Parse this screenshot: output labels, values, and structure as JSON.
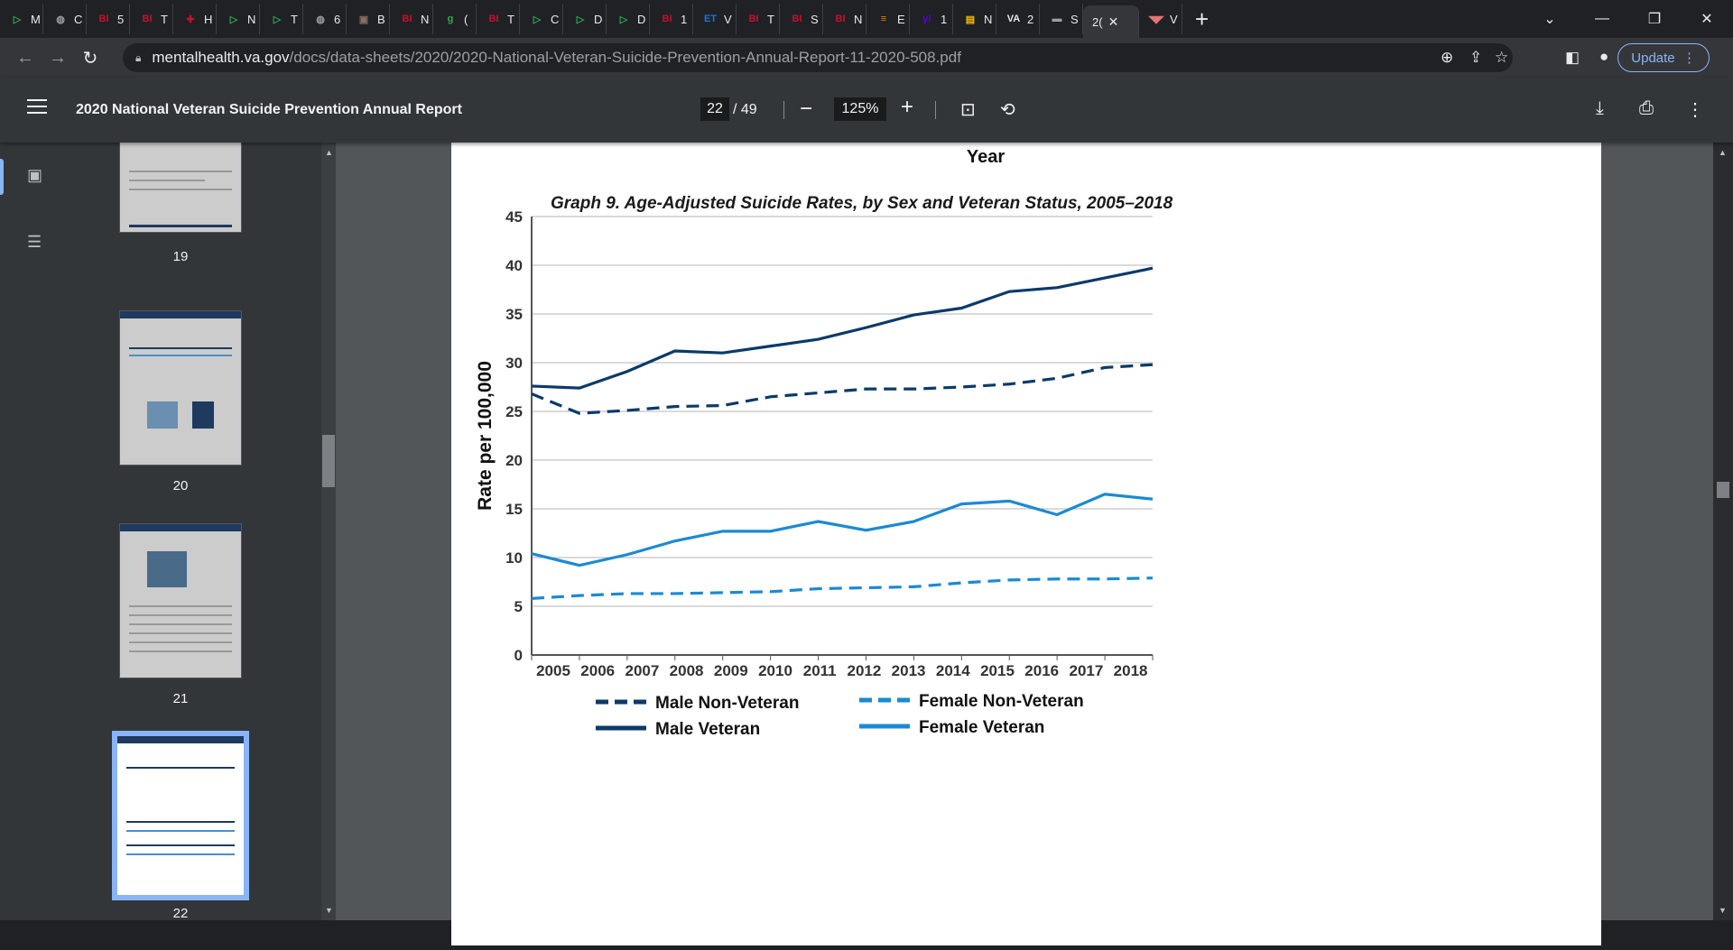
{
  "browser": {
    "tabs": [
      {
        "icon": "▷",
        "label": "M",
        "color": "#34a853"
      },
      {
        "icon": "◍",
        "label": "C",
        "color": "#9aa0a6"
      },
      {
        "icon": "BI",
        "label": "5",
        "color": "#c8102e"
      },
      {
        "icon": "BI",
        "label": "T",
        "color": "#c8102e"
      },
      {
        "icon": "✚",
        "label": "H",
        "color": "#c8102e"
      },
      {
        "icon": "▷",
        "label": "N",
        "color": "#34a853"
      },
      {
        "icon": "▷",
        "label": "T",
        "color": "#34a853"
      },
      {
        "icon": "◍",
        "label": "6",
        "color": "#9aa0a6"
      },
      {
        "icon": "▣",
        "label": "B",
        "color": "#8d6e63"
      },
      {
        "icon": "BI",
        "label": "N",
        "color": "#c8102e"
      },
      {
        "icon": "g",
        "label": "(",
        "color": "#34a853"
      },
      {
        "icon": "BI",
        "label": "T",
        "color": "#c8102e"
      },
      {
        "icon": "▷",
        "label": "C",
        "color": "#34a853"
      },
      {
        "icon": "▷",
        "label": "D",
        "color": "#34a853"
      },
      {
        "icon": "▷",
        "label": "D",
        "color": "#34a853"
      },
      {
        "icon": "BI",
        "label": "1",
        "color": "#c8102e"
      },
      {
        "icon": "ET",
        "label": "V",
        "color": "#1a73e8"
      },
      {
        "icon": "BI",
        "label": "T",
        "color": "#c8102e"
      },
      {
        "icon": "BI",
        "label": "S",
        "color": "#c8102e"
      },
      {
        "icon": "BI",
        "label": "N",
        "color": "#c8102e"
      },
      {
        "icon": "≡",
        "label": "E",
        "color": "#f57c00"
      },
      {
        "icon": "y!",
        "label": "1",
        "color": "#6001d2"
      },
      {
        "icon": "▤",
        "label": "N",
        "color": "#fbbc04"
      },
      {
        "icon": "VA",
        "label": "2",
        "color": "#e8eaed"
      },
      {
        "icon": "▬",
        "label": "S",
        "color": "#9aa0a6"
      },
      {
        "icon": "",
        "label": "2(",
        "color": "#9aa0a6"
      },
      {
        "icon": "◥◤",
        "label": "V",
        "color": "#e57373"
      }
    ],
    "active_close": "✕",
    "new_tab": "+",
    "url_host": "mentalhealth.va.gov",
    "url_path": "/docs/data-sheets/2020/2020-National-Veteran-Suicide-Prevention-Annual-Report-11-2020-508.pdf",
    "update_label": "Update"
  },
  "viewer": {
    "title": "2020 National Veteran Suicide Prevention Annual Report",
    "current_page": "22",
    "total_pages": "/ 49",
    "zoom": "125%"
  },
  "thumbnails": [
    {
      "page": "19"
    },
    {
      "page": "20"
    },
    {
      "page": "21"
    },
    {
      "page": "22"
    }
  ],
  "document": {
    "prev_axis_label": "Year",
    "graph_title": "Graph 9. Age-Adjusted Suicide Rates, by Sex and Veteran Status, 2005–2018"
  },
  "chart_data": {
    "type": "line",
    "title": "Graph 9. Age-Adjusted Suicide Rates, by Sex and Veteran Status, 2005–2018",
    "xlabel": "",
    "ylabel": "Rate per 100,000",
    "ylim": [
      0,
      45
    ],
    "yticks": [
      0,
      5,
      10,
      15,
      20,
      25,
      30,
      35,
      40,
      45
    ],
    "grid": true,
    "legend_position": "bottom",
    "categories": [
      "2005",
      "2006",
      "2007",
      "2008",
      "2009",
      "2010",
      "2011",
      "2012",
      "2013",
      "2014",
      "2015",
      "2016",
      "2017",
      "2018"
    ],
    "series": [
      {
        "name": "Male Non-Veteran",
        "color": "#0b3a6b",
        "dash": true,
        "values": [
          26.8,
          24.8,
          25.1,
          25.5,
          25.6,
          26.5,
          26.9,
          27.3,
          27.3,
          27.5,
          27.8,
          28.4,
          29.5,
          29.8
        ]
      },
      {
        "name": "Female Non-Veteran",
        "color": "#1a8ad4",
        "dash": true,
        "values": [
          5.8,
          6.1,
          6.3,
          6.3,
          6.4,
          6.5,
          6.8,
          6.9,
          7.0,
          7.4,
          7.7,
          7.8,
          7.8,
          7.9
        ]
      },
      {
        "name": "Male Veteran",
        "color": "#0b3a6b",
        "dash": false,
        "values": [
          27.6,
          27.4,
          29.1,
          31.2,
          31.0,
          31.7,
          32.4,
          33.6,
          34.9,
          35.6,
          37.3,
          37.7,
          38.7,
          39.7
        ]
      },
      {
        "name": "Female Veteran",
        "color": "#1a8ad4",
        "dash": false,
        "values": [
          10.4,
          9.2,
          10.3,
          11.7,
          12.7,
          12.7,
          13.7,
          12.8,
          13.7,
          15.5,
          15.8,
          14.4,
          16.5,
          16.0
        ]
      }
    ]
  }
}
